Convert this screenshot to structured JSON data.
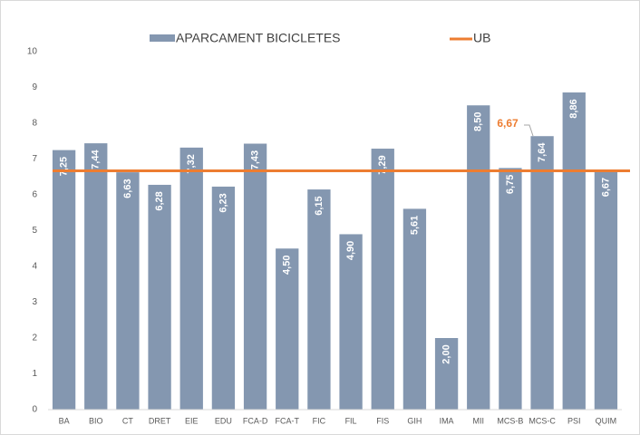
{
  "chart_data": {
    "type": "bar",
    "categories": [
      "BA",
      "BIO",
      "CT",
      "DRET",
      "EIE",
      "EDU",
      "FCA-D",
      "FCA-T",
      "FIC",
      "FIL",
      "FIS",
      "GIH",
      "IMA",
      "MII",
      "MCS-B",
      "MCS-C",
      "PSI",
      "QUIM"
    ],
    "series": [
      {
        "name": "APARCAMENT BICICLETES",
        "color": "#8497b0",
        "values": [
          7.25,
          7.44,
          6.63,
          6.28,
          7.32,
          6.23,
          7.43,
          4.5,
          6.15,
          4.9,
          7.29,
          5.61,
          2.0,
          8.5,
          6.75,
          7.64,
          8.86,
          6.67
        ],
        "value_labels": [
          "7,25",
          "7,44",
          "6,63",
          "6,28",
          "7,32",
          "6,23",
          "7,43",
          "4,50",
          "6,15",
          "4,90",
          "7,29",
          "5,61",
          "2,00",
          "8,50",
          "6,75",
          "7,64",
          "8,86",
          "6,67"
        ]
      }
    ],
    "reference_line": {
      "name": "UB",
      "value": 6.67,
      "label": "6,67",
      "color": "#ed7d31"
    },
    "ylim": [
      0,
      10
    ],
    "yticks": [
      0,
      1,
      2,
      3,
      4,
      5,
      6,
      7,
      8,
      9,
      10
    ],
    "grid": false
  }
}
